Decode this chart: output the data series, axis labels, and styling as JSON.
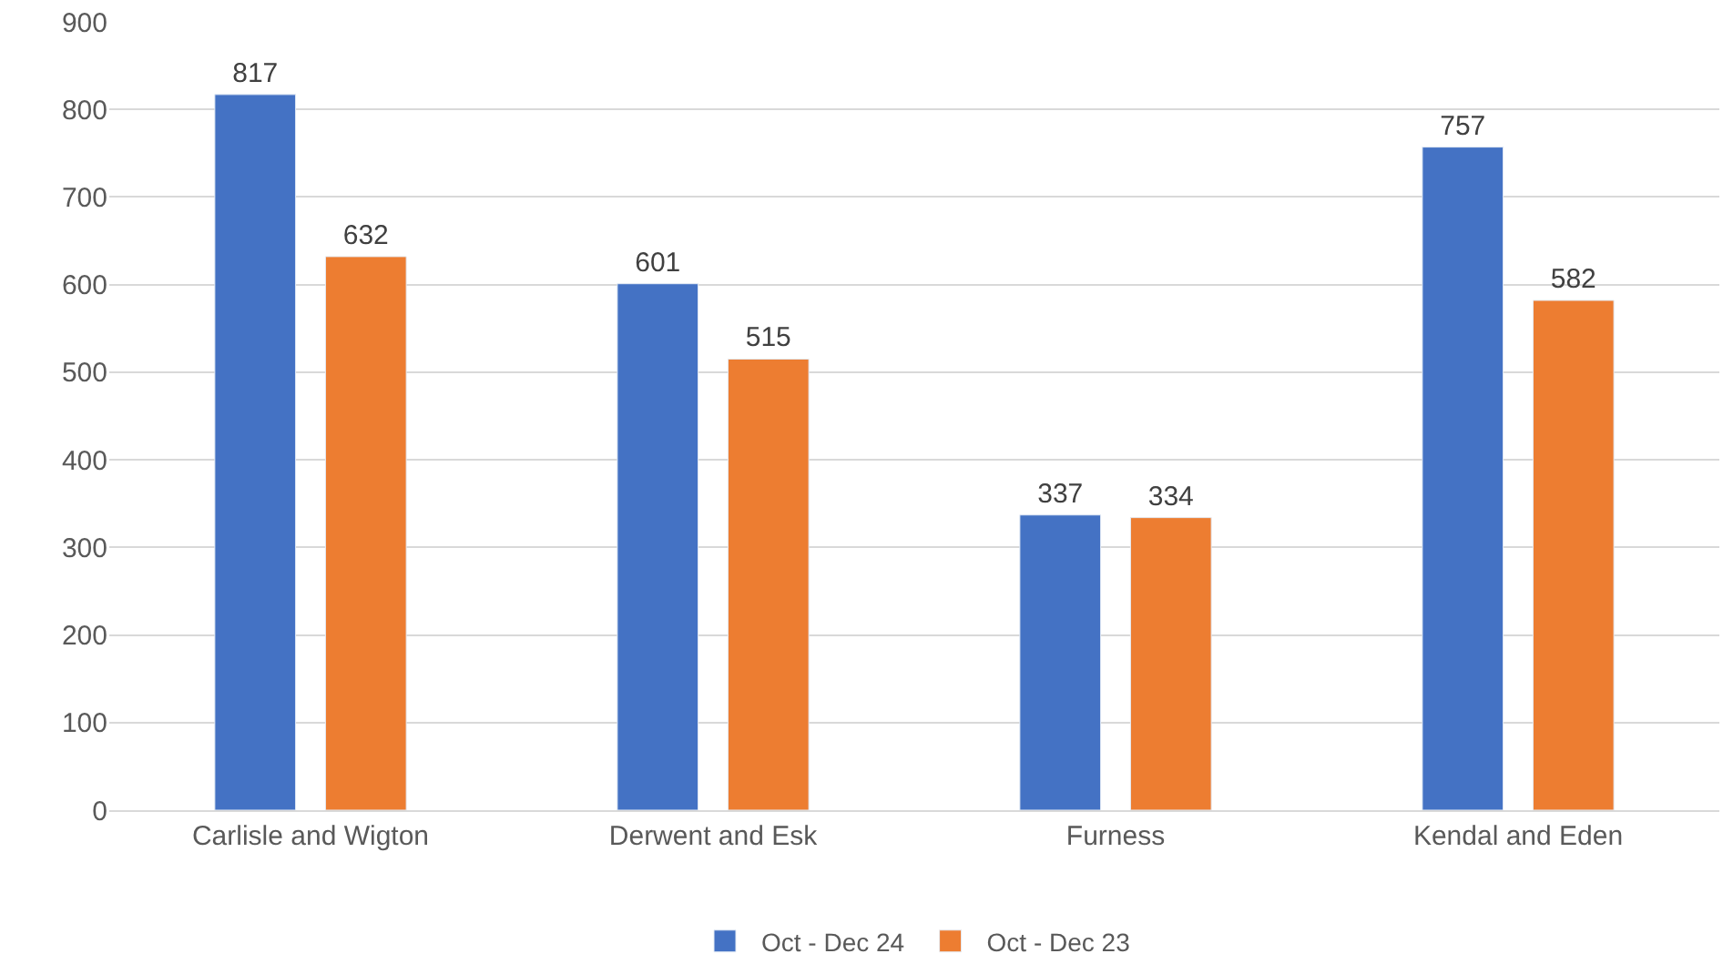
{
  "chart_data": {
    "type": "bar",
    "categories": [
      "Carlisle and Wigton",
      "Derwent and Esk",
      "Furness",
      "Kendal and Eden"
    ],
    "series": [
      {
        "name": "Oct - Dec 24",
        "color": "#4472c4",
        "values": [
          817,
          601,
          337,
          757
        ]
      },
      {
        "name": "Oct - Dec 23",
        "color": "#ed7d31",
        "values": [
          632,
          515,
          334,
          582
        ]
      }
    ],
    "ylim": [
      0,
      900
    ],
    "yticks": [
      0,
      100,
      200,
      300,
      400,
      500,
      600,
      700,
      800,
      900
    ],
    "grid": "y",
    "legend": "bottom",
    "data_labels": true
  }
}
